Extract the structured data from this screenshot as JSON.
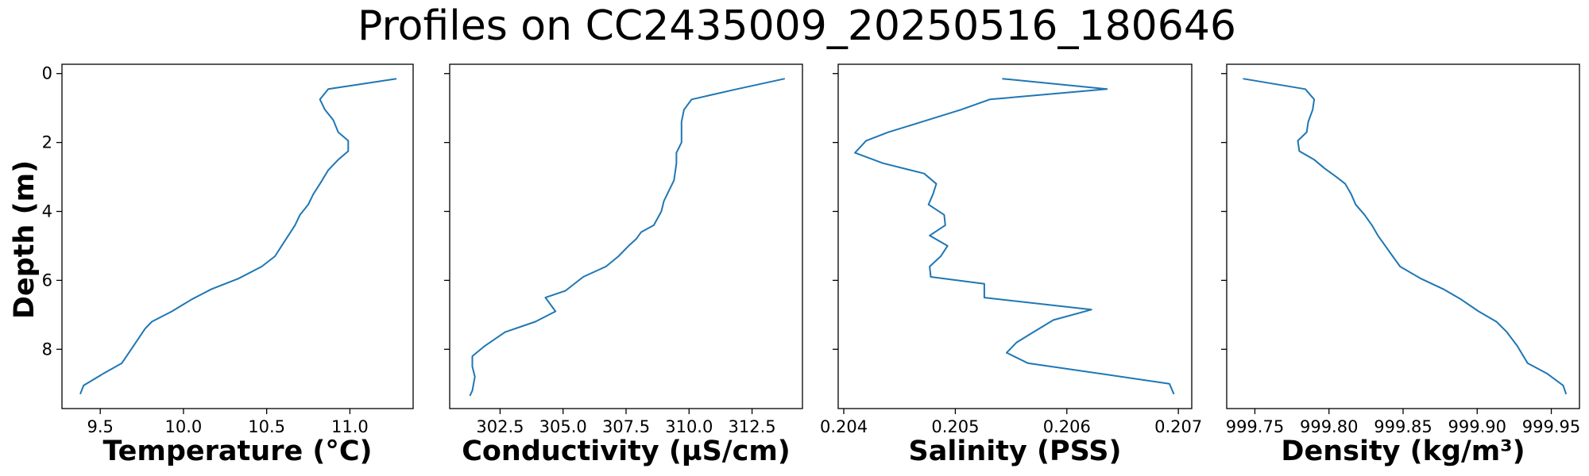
{
  "chart_data": {
    "type": "line",
    "title": "Profiles on CC2435009_20250516_180646",
    "ylabel": "Depth (m)",
    "ylim": [
      9.72,
      -0.27
    ],
    "y_inverted": true,
    "yticks": [
      "0",
      "2",
      "4",
      "6",
      "8"
    ],
    "ytick_values": [
      0,
      2,
      4,
      6,
      8
    ],
    "line_color": "#1f77b4",
    "grid": false,
    "panels": [
      {
        "name": "temperature",
        "xlabel": "Temperature (°C)",
        "xlim": [
          9.27,
          11.38
        ],
        "xticks": [
          "9.5",
          "10.0",
          "10.5",
          "11.0"
        ],
        "xtick_values": [
          9.5,
          10.0,
          10.5,
          11.0
        ],
        "points": [
          [
            11.28,
            0.15
          ],
          [
            10.87,
            0.45
          ],
          [
            10.82,
            0.75
          ],
          [
            10.85,
            1.05
          ],
          [
            10.9,
            1.35
          ],
          [
            10.93,
            1.7
          ],
          [
            10.99,
            1.95
          ],
          [
            10.99,
            2.25
          ],
          [
            10.93,
            2.5
          ],
          [
            10.87,
            2.8
          ],
          [
            10.82,
            3.2
          ],
          [
            10.78,
            3.5
          ],
          [
            10.75,
            3.8
          ],
          [
            10.7,
            4.1
          ],
          [
            10.67,
            4.4
          ],
          [
            10.63,
            4.7
          ],
          [
            10.59,
            5.0
          ],
          [
            10.55,
            5.3
          ],
          [
            10.47,
            5.6
          ],
          [
            10.33,
            5.95
          ],
          [
            10.17,
            6.25
          ],
          [
            10.05,
            6.55
          ],
          [
            9.93,
            6.9
          ],
          [
            9.81,
            7.2
          ],
          [
            9.77,
            7.4
          ],
          [
            9.7,
            7.9
          ],
          [
            9.63,
            8.4
          ],
          [
            9.52,
            8.7
          ],
          [
            9.4,
            9.05
          ],
          [
            9.38,
            9.3
          ]
        ]
      },
      {
        "name": "conductivity",
        "xlabel": "Conductivity (µS/cm)",
        "xlim": [
          300.5,
          314.5
        ],
        "xticks": [
          "302.5",
          "305.0",
          "307.5",
          "310.0",
          "312.5"
        ],
        "xtick_values": [
          302.5,
          305.0,
          307.5,
          310.0,
          312.5
        ],
        "points": [
          [
            313.8,
            0.15
          ],
          [
            311.9,
            0.45
          ],
          [
            310.1,
            0.75
          ],
          [
            309.8,
            1.05
          ],
          [
            309.7,
            1.4
          ],
          [
            309.7,
            2.0
          ],
          [
            309.5,
            2.3
          ],
          [
            309.5,
            2.6
          ],
          [
            309.4,
            3.1
          ],
          [
            309.2,
            3.4
          ],
          [
            309.0,
            3.7
          ],
          [
            308.9,
            4.0
          ],
          [
            308.6,
            4.4
          ],
          [
            308.1,
            4.6
          ],
          [
            307.9,
            4.8
          ],
          [
            307.6,
            5.0
          ],
          [
            307.2,
            5.3
          ],
          [
            306.7,
            5.6
          ],
          [
            305.8,
            5.9
          ],
          [
            305.1,
            6.3
          ],
          [
            304.3,
            6.5
          ],
          [
            304.7,
            6.9
          ],
          [
            303.9,
            7.2
          ],
          [
            302.7,
            7.5
          ],
          [
            301.9,
            7.9
          ],
          [
            301.4,
            8.2
          ],
          [
            301.4,
            8.5
          ],
          [
            301.5,
            8.8
          ],
          [
            301.4,
            9.2
          ],
          [
            301.3,
            9.35
          ]
        ]
      },
      {
        "name": "salinity",
        "xlabel": "Salinity (PSS)",
        "xlim": [
          0.20395,
          0.20712
        ],
        "xticks": [
          "0.204",
          "0.205",
          "0.206",
          "0.207"
        ],
        "xtick_values": [
          0.204,
          0.205,
          0.206,
          0.207
        ],
        "points": [
          [
            0.20542,
            0.15
          ],
          [
            0.20636,
            0.45
          ],
          [
            0.20531,
            0.75
          ],
          [
            0.20505,
            1.05
          ],
          [
            0.2047,
            1.4
          ],
          [
            0.2044,
            1.7
          ],
          [
            0.2042,
            1.95
          ],
          [
            0.2041,
            2.3
          ],
          [
            0.20435,
            2.6
          ],
          [
            0.20472,
            2.9
          ],
          [
            0.20483,
            3.2
          ],
          [
            0.2048,
            3.5
          ],
          [
            0.20476,
            3.8
          ],
          [
            0.2049,
            4.1
          ],
          [
            0.20491,
            4.4
          ],
          [
            0.20477,
            4.7
          ],
          [
            0.20493,
            5.0
          ],
          [
            0.20487,
            5.3
          ],
          [
            0.20477,
            5.6
          ],
          [
            0.20478,
            5.9
          ],
          [
            0.20526,
            6.1
          ],
          [
            0.20526,
            6.5
          ],
          [
            0.20622,
            6.85
          ],
          [
            0.20588,
            7.15
          ],
          [
            0.2057,
            7.5
          ],
          [
            0.20555,
            7.8
          ],
          [
            0.20546,
            8.1
          ],
          [
            0.20565,
            8.4
          ],
          [
            0.20692,
            9.0
          ],
          [
            0.20696,
            9.3
          ]
        ]
      },
      {
        "name": "density",
        "xlabel": "Density (kg/m³)",
        "xlim": [
          999.731,
          999.969
        ],
        "xticks": [
          "999.75",
          "999.80",
          "999.85",
          "999.90",
          "999.95"
        ],
        "xtick_values": [
          999.75,
          999.8,
          999.85,
          999.9,
          999.95
        ],
        "points": [
          [
            999.742,
            0.15
          ],
          [
            999.784,
            0.45
          ],
          [
            999.79,
            0.75
          ],
          [
            999.789,
            1.05
          ],
          [
            999.786,
            1.4
          ],
          [
            999.785,
            1.7
          ],
          [
            999.779,
            1.95
          ],
          [
            999.78,
            2.25
          ],
          [
            999.79,
            2.5
          ],
          [
            999.797,
            2.75
          ],
          [
            999.805,
            3.0
          ],
          [
            999.811,
            3.2
          ],
          [
            999.815,
            3.5
          ],
          [
            999.818,
            3.8
          ],
          [
            999.824,
            4.1
          ],
          [
            999.829,
            4.4
          ],
          [
            999.833,
            4.7
          ],
          [
            999.838,
            5.0
          ],
          [
            999.843,
            5.3
          ],
          [
            999.848,
            5.6
          ],
          [
            999.862,
            5.95
          ],
          [
            999.877,
            6.25
          ],
          [
            999.889,
            6.55
          ],
          [
            999.901,
            6.9
          ],
          [
            999.913,
            7.2
          ],
          [
            999.92,
            7.5
          ],
          [
            999.927,
            7.9
          ],
          [
            999.934,
            8.4
          ],
          [
            999.947,
            8.7
          ],
          [
            999.958,
            9.05
          ],
          [
            999.96,
            9.3
          ]
        ]
      }
    ]
  }
}
